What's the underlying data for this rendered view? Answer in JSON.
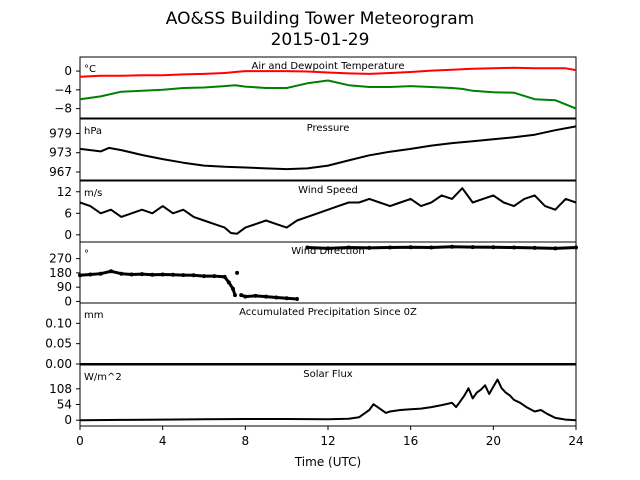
{
  "title": "AO&SS Building Tower Meteorogram",
  "subtitle": "2015-01-29",
  "chart_data": {
    "type": "line",
    "x_label": "Time (UTC)",
    "x_range": [
      0,
      24
    ],
    "x_ticks": [
      "0",
      "4",
      "8",
      "12",
      "16",
      "20",
      "24"
    ],
    "panels": [
      {
        "title": "Air and Dewpoint Temperature",
        "unit": "°C",
        "ylim": [
          -10,
          3
        ],
        "y_ticks": [
          0,
          -4,
          -8
        ],
        "y_tick_labels": [
          "0",
          "−4",
          "−8"
        ],
        "series": [
          {
            "color": "#ff0000",
            "x": [
              0,
              1,
              2,
              3,
              4,
              5,
              6,
              7,
              7.5,
              8,
              9,
              10,
              11,
              12,
              13,
              14,
              15,
              16,
              17,
              18,
              19,
              20,
              21,
              22,
              23,
              23.5,
              24
            ],
            "y": [
              -1.2,
              -1.0,
              -1.0,
              -0.9,
              -0.9,
              -0.7,
              -0.6,
              -0.4,
              -0.2,
              0.0,
              0.0,
              0.0,
              -0.1,
              -0.3,
              -0.5,
              -0.6,
              -0.4,
              -0.2,
              0.1,
              0.3,
              0.5,
              0.6,
              0.7,
              0.6,
              0.6,
              0.6,
              0.2
            ]
          },
          {
            "color": "#008000",
            "x": [
              0,
              1,
              2,
              3,
              4,
              5,
              6,
              7,
              7.5,
              8,
              9,
              10,
              11,
              12,
              13,
              14,
              15,
              16,
              17,
              18,
              18.5,
              19,
              20,
              21,
              22,
              23,
              24
            ],
            "y": [
              -6.0,
              -5.4,
              -4.4,
              -4.2,
              -4.0,
              -3.6,
              -3.5,
              -3.2,
              -3.0,
              -3.3,
              -3.6,
              -3.6,
              -2.6,
              -2.0,
              -3.0,
              -3.4,
              -3.4,
              -3.2,
              -3.4,
              -3.6,
              -3.8,
              -4.2,
              -4.5,
              -4.6,
              -6.0,
              -6.2,
              -8.0
            ]
          }
        ]
      },
      {
        "title": "Pressure",
        "unit": "hPa",
        "ylim": [
          964.5,
          983.5
        ],
        "y_ticks": [
          979,
          973,
          967
        ],
        "y_tick_labels": [
          "979",
          "973",
          "967"
        ],
        "series": [
          {
            "color": "#000000",
            "x": [
              0,
              1,
              1.4,
              2,
              3,
              4,
              5,
              6,
              7,
              8,
              9,
              10,
              11,
              12,
              13,
              14,
              15,
              16,
              17,
              18,
              19,
              20,
              21,
              22,
              23,
              24
            ],
            "y": [
              974.2,
              973.4,
              974.5,
              973.8,
              972.3,
              971.0,
              969.9,
              969.0,
              968.6,
              968.4,
              968.1,
              967.9,
              968.1,
              969.0,
              970.6,
              972.2,
              973.3,
              974.2,
              975.2,
              976.0,
              976.6,
              977.2,
              977.8,
              978.6,
              980.0,
              981.2
            ]
          }
        ]
      },
      {
        "title": "Wind Speed",
        "unit": "m/s",
        "ylim": [
          -2,
          15
        ],
        "y_ticks": [
          12,
          6,
          0
        ],
        "y_tick_labels": [
          "12",
          "6",
          "0"
        ],
        "series": [
          {
            "color": "#000000",
            "x": [
              0,
              0.5,
              1,
              1.5,
              2,
              2.5,
              3,
              3.5,
              4,
              4.5,
              5,
              5.5,
              6,
              6.5,
              7,
              7.3,
              7.6,
              8,
              8.5,
              9,
              9.5,
              10,
              10.5,
              11,
              11.5,
              12,
              12.5,
              13,
              13.5,
              14,
              14.5,
              15,
              15.5,
              16,
              16.5,
              17,
              17.5,
              18,
              18.5,
              19,
              19.5,
              20,
              20.5,
              21,
              21.5,
              22,
              22.5,
              23,
              23.5,
              24
            ],
            "y": [
              9,
              8,
              6,
              7,
              5,
              6,
              7,
              6,
              8,
              6,
              7,
              5,
              4,
              3,
              2,
              0.5,
              0.3,
              2,
              3,
              4,
              3,
              2,
              4,
              5,
              6,
              7,
              8,
              9,
              9,
              10,
              9,
              8,
              9,
              10,
              8,
              9,
              11,
              10,
              13,
              9,
              10,
              11,
              9,
              8,
              10,
              11,
              8,
              7,
              10,
              9
            ]
          }
        ]
      },
      {
        "title": "Wind Direction",
        "unit": "°",
        "ylim": [
          -10,
          375
        ],
        "y_ticks": [
          270,
          180,
          90,
          0
        ],
        "y_tick_labels": [
          "270",
          "180",
          "90",
          "0"
        ],
        "series": [
          {
            "color": "#000000",
            "style": "dots",
            "x": [
              0,
              0.5,
              1,
              1.5,
              2,
              2.5,
              3,
              3.5,
              4,
              4.5,
              5,
              5.5,
              6,
              6.5,
              7,
              7.2,
              7.4,
              7.5,
              7.6,
              7.8,
              8,
              8.5,
              9,
              9.5,
              10,
              10.5,
              11,
              12,
              13,
              14,
              15,
              16,
              17,
              18,
              19,
              20,
              21,
              22,
              23,
              24
            ],
            "y": [
              165,
              170,
              175,
              190,
              175,
              170,
              172,
              168,
              170,
              168,
              166,
              165,
              160,
              160,
              155,
              120,
              80,
              40,
              180,
              40,
              30,
              35,
              30,
              25,
              20,
              15,
              340,
              335,
              340,
              338,
              340,
              342,
              340,
              345,
              343,
              342,
              340,
              338,
              335,
              340
            ]
          }
        ]
      },
      {
        "title": "Accumulated Precipitation Since 0Z",
        "unit": "mm",
        "ylim": [
          0,
          0.15
        ],
        "y_ticks": [
          0.1,
          0.05,
          0.0
        ],
        "y_tick_labels": [
          "0.10",
          "0.05",
          "0.00"
        ],
        "series": [
          {
            "color": "#000000",
            "x": [
              0,
              24
            ],
            "y": [
              0,
              0
            ]
          }
        ]
      },
      {
        "title": "Solar Flux",
        "unit": "W/m^2",
        "ylim": [
          -20,
          190
        ],
        "y_ticks": [
          108,
          54,
          0
        ],
        "y_tick_labels": [
          "108",
          "54",
          "0"
        ],
        "series": [
          {
            "color": "#000000",
            "x": [
              0,
              2,
              4,
              6,
              8,
              10,
              12,
              13,
              13.5,
              14,
              14.2,
              14.5,
              14.8,
              15,
              15.5,
              16,
              16.5,
              17,
              17.5,
              18,
              18.2,
              18.4,
              18.6,
              18.8,
              19,
              19.2,
              19.4,
              19.6,
              19.8,
              20,
              20.2,
              20.4,
              20.6,
              20.8,
              21,
              21.3,
              21.6,
              22,
              22.3,
              22.6,
              23,
              23.5,
              24
            ],
            "y": [
              0,
              1,
              2,
              3,
              4,
              4,
              3,
              5,
              10,
              35,
              55,
              40,
              25,
              30,
              35,
              38,
              40,
              45,
              52,
              60,
              45,
              65,
              85,
              110,
              75,
              95,
              105,
              120,
              90,
              115,
              140,
              110,
              95,
              85,
              70,
              60,
              45,
              30,
              35,
              22,
              8,
              2,
              0
            ]
          }
        ]
      }
    ]
  }
}
